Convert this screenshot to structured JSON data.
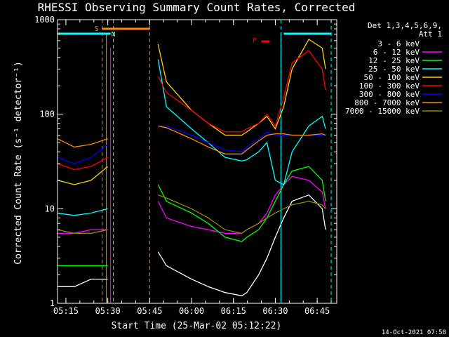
{
  "chart_data": {
    "type": "line",
    "title": "RHESSI Observing Summary Count Rates, Corrected",
    "ylabel": "Corrected Count Rate (s⁻¹ detector⁻¹)",
    "xlabel": "Start Time (25-Mar-02 05:12:22)",
    "yscale": "log",
    "ylim": [
      1,
      1000
    ],
    "xlim": [
      "05:12",
      "06:52"
    ],
    "x_ticks": [
      "05:15",
      "05:30",
      "05:45",
      "06:00",
      "06:15",
      "06:30",
      "06:45"
    ],
    "y_ticks": [
      "1",
      "10",
      "100",
      "1000"
    ],
    "grid": false,
    "legend_position": "right",
    "legend_header": [
      "Det 1,3,4,5,6,9,",
      "Att 1"
    ],
    "series": [
      {
        "name": "3 - 6 keV",
        "color": "#ffffff",
        "label_color": "#000000",
        "t": [
          5.2,
          5.3,
          5.4,
          5.5,
          5.52,
          5.8,
          5.85,
          6.0,
          6.1,
          6.2,
          6.3,
          6.33,
          6.4,
          6.45,
          6.5,
          6.55,
          6.6,
          6.7,
          6.78,
          6.8
        ],
        "values": [
          1.5,
          1.5,
          1.8,
          1.8,
          null,
          3.5,
          2.5,
          1.8,
          1.5,
          1.3,
          1.2,
          1.3,
          2,
          3,
          5,
          8,
          12,
          14,
          10,
          6
        ]
      },
      {
        "name": "6 - 12 keV",
        "color": "#ff00ff",
        "t": [
          5.2,
          5.3,
          5.4,
          5.5,
          5.52,
          5.8,
          5.85,
          6.0,
          6.1,
          6.2,
          6.3,
          6.33,
          6.4,
          6.45,
          6.5,
          6.55,
          6.6,
          6.7,
          6.78,
          6.8
        ],
        "values": [
          5.5,
          5.5,
          6,
          6,
          null,
          12,
          8,
          6.5,
          6,
          5.5,
          5.5,
          6,
          7,
          9,
          14,
          18,
          22,
          20,
          15,
          10
        ]
      },
      {
        "name": "12 - 25 keV",
        "color": "#00ff00",
        "t": [
          5.2,
          5.3,
          5.4,
          5.5,
          5.52,
          5.8,
          5.85,
          6.0,
          6.1,
          6.2,
          6.3,
          6.33,
          6.4,
          6.45,
          6.5,
          6.55,
          6.6,
          6.7,
          6.78,
          6.8
        ],
        "values": [
          2.5,
          2.5,
          2.5,
          2.5,
          null,
          18,
          12,
          9,
          7,
          5,
          4.5,
          5,
          6,
          8,
          12,
          18,
          25,
          28,
          20,
          12
        ]
      },
      {
        "name": "25 - 50 keV",
        "color": "#00ffff",
        "t": [
          5.2,
          5.3,
          5.4,
          5.5,
          5.52,
          5.8,
          5.85,
          6.0,
          6.1,
          6.2,
          6.3,
          6.33,
          6.4,
          6.45,
          6.5,
          6.55,
          6.6,
          6.7,
          6.78,
          6.8
        ],
        "values": [
          9,
          8.5,
          9,
          10,
          null,
          380,
          120,
          70,
          50,
          35,
          32,
          33,
          40,
          50,
          20,
          18,
          40,
          75,
          95,
          70
        ]
      },
      {
        "name": "50 - 100 keV",
        "color": "#ffd700",
        "t": [
          5.2,
          5.3,
          5.4,
          5.5,
          5.52,
          5.8,
          5.85,
          6.0,
          6.1,
          6.2,
          6.3,
          6.33,
          6.4,
          6.45,
          6.5,
          6.55,
          6.6,
          6.7,
          6.78,
          6.8
        ],
        "values": [
          20,
          18,
          20,
          28,
          null,
          550,
          220,
          110,
          80,
          60,
          60,
          65,
          80,
          95,
          70,
          120,
          300,
          620,
          500,
          300
        ]
      },
      {
        "name": "100 - 300 keV",
        "color": "#ff0000",
        "t": [
          5.2,
          5.3,
          5.4,
          5.5,
          5.52,
          5.8,
          5.85,
          6.0,
          6.1,
          6.2,
          6.3,
          6.33,
          6.4,
          6.45,
          6.5,
          6.55,
          6.6,
          6.7,
          6.78,
          6.8
        ],
        "values": [
          30,
          26,
          28,
          35,
          null,
          250,
          170,
          110,
          80,
          65,
          65,
          70,
          80,
          100,
          75,
          150,
          350,
          470,
          300,
          180
        ]
      },
      {
        "name": "300 - 800 keV",
        "color": "#0000ff",
        "t": [
          5.2,
          5.3,
          5.4,
          5.5,
          5.52,
          5.8,
          5.85,
          6.0,
          6.1,
          6.2,
          6.3,
          6.33,
          6.4,
          6.45,
          6.5,
          6.55,
          6.6,
          6.7,
          6.78,
          6.8
        ],
        "values": [
          35,
          30,
          35,
          48,
          null,
          75,
          75,
          60,
          50,
          42,
          40,
          45,
          55,
          65,
          60,
          60,
          60,
          60,
          60,
          60
        ]
      },
      {
        "name": "800 - 7000 keV",
        "color": "#ff8c00",
        "t": [
          5.2,
          5.3,
          5.4,
          5.5,
          5.52,
          5.8,
          5.85,
          6.0,
          6.1,
          6.2,
          6.3,
          6.33,
          6.4,
          6.45,
          6.5,
          6.55,
          6.6,
          6.7,
          6.78,
          6.8
        ],
        "values": [
          55,
          45,
          48,
          55,
          null,
          75,
          72,
          55,
          45,
          38,
          38,
          42,
          52,
          60,
          62,
          62,
          60,
          60,
          62,
          60
        ]
      },
      {
        "name": "7000 - 15000 keV",
        "color": "#8b8b00",
        "t": [
          5.2,
          5.3,
          5.4,
          5.5,
          5.52,
          5.8,
          5.85,
          6.0,
          6.1,
          6.2,
          6.3,
          6.33,
          6.4,
          6.45,
          6.5,
          6.55,
          6.6,
          6.7,
          6.78,
          6.8
        ],
        "values": [
          6,
          5.5,
          5.5,
          6,
          null,
          14,
          13,
          10,
          8,
          6,
          5.5,
          6,
          7,
          8,
          9,
          10,
          11,
          12,
          11,
          10
        ]
      }
    ],
    "annotations": [
      {
        "label": "S",
        "color": "#ff8c00"
      },
      {
        "label": "N",
        "color": "#00ffff"
      },
      {
        "label": "F",
        "color": "#ff0000"
      }
    ],
    "footer": "14-Oct-2021 07:58"
  }
}
